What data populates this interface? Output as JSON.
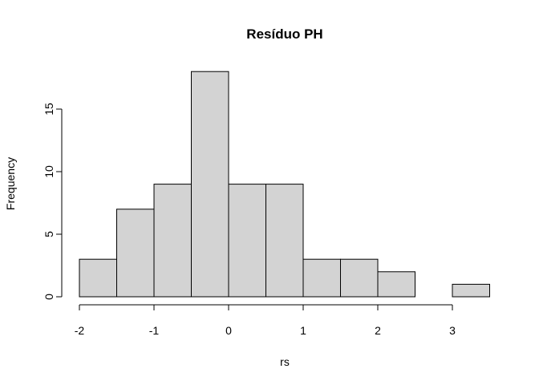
{
  "chart_data": {
    "type": "bar",
    "title": "Resíduo  PH",
    "xlabel": "rs",
    "ylabel": "Frequency",
    "bins": [
      {
        "start": -2.0,
        "end": -1.5,
        "count": 3
      },
      {
        "start": -1.5,
        "end": -1.0,
        "count": 7
      },
      {
        "start": -1.0,
        "end": -0.5,
        "count": 9
      },
      {
        "start": -0.5,
        "end": 0.0,
        "count": 18
      },
      {
        "start": 0.0,
        "end": 0.5,
        "count": 9
      },
      {
        "start": 0.5,
        "end": 1.0,
        "count": 9
      },
      {
        "start": 1.0,
        "end": 1.5,
        "count": 3
      },
      {
        "start": 1.5,
        "end": 2.0,
        "count": 3
      },
      {
        "start": 2.0,
        "end": 2.5,
        "count": 2
      },
      {
        "start": 2.5,
        "end": 3.0,
        "count": 0
      },
      {
        "start": 3.0,
        "end": 3.5,
        "count": 1
      }
    ],
    "x_ticks": [
      -2,
      -1,
      0,
      1,
      2,
      3
    ],
    "y_ticks": [
      0,
      5,
      10,
      15
    ],
    "xlim": [
      -2,
      3.5
    ],
    "ylim": [
      0,
      18
    ],
    "bar_color": "#d3d3d3",
    "border_color": "#000000",
    "grid": false,
    "legend": "none"
  }
}
